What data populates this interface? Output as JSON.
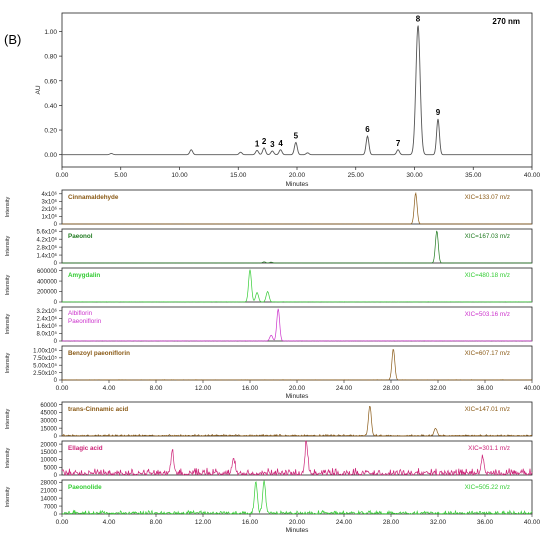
{
  "panel_label": "(B)",
  "chart_data": [
    {
      "type": "line",
      "id": "uv",
      "wavelength_label": "270 nm",
      "xlabel": "Minutes",
      "ylabel": "AU",
      "xlim": [
        0,
        40
      ],
      "ylim": [
        -0.1,
        1.15
      ],
      "x_ticks": [
        "0.00",
        "5.00",
        "10.00",
        "15.00",
        "20.00",
        "25.00",
        "30.00",
        "35.00",
        "40.00"
      ],
      "y_ticks": [
        "0.00",
        "0.20",
        "0.40",
        "0.60",
        "0.80",
        "1.00"
      ],
      "peaks": [
        {
          "x": 4.2,
          "y": 0.01
        },
        {
          "x": 11.0,
          "y": 0.04
        },
        {
          "x": 15.2,
          "y": 0.02
        },
        {
          "x": 16.6,
          "y": 0.035,
          "label": "1"
        },
        {
          "x": 17.2,
          "y": 0.055,
          "label": "2"
        },
        {
          "x": 17.9,
          "y": 0.03,
          "label": "3"
        },
        {
          "x": 18.6,
          "y": 0.04,
          "label": "4"
        },
        {
          "x": 19.9,
          "y": 0.1,
          "label": "5"
        },
        {
          "x": 20.9,
          "y": 0.015
        },
        {
          "x": 26.0,
          "y": 0.15,
          "label": "6"
        },
        {
          "x": 28.6,
          "y": 0.04,
          "label": "7"
        },
        {
          "x": 30.3,
          "y": 1.05,
          "label": "8"
        },
        {
          "x": 32.0,
          "y": 0.29,
          "label": "9"
        }
      ]
    },
    {
      "type": "line",
      "id": "xic1",
      "compound": "Cinnamaldehyde",
      "xic": "XIC=133.07 m/z",
      "ylabel": "Intensity",
      "y_ticks": [
        "0",
        "1x10⁶",
        "2x10⁶",
        "3x10⁶",
        "4x10⁶"
      ],
      "ylim": [
        0,
        4500000
      ],
      "peaks": [
        {
          "x": 30.1,
          "y": 4100000
        }
      ]
    },
    {
      "type": "line",
      "id": "xic2",
      "compound": "Paeonol",
      "xic": "XIC=167.03 m/z",
      "ylabel": "Intensity",
      "y_ticks": [
        "0",
        "1.4x10⁶",
        "2.8x10⁶",
        "4.2x10⁶",
        "5.6x10⁶"
      ],
      "ylim": [
        0,
        6000000
      ],
      "peaks": [
        {
          "x": 17.2,
          "y": 200000
        },
        {
          "x": 17.8,
          "y": 150000
        },
        {
          "x": 31.9,
          "y": 5700000
        }
      ]
    },
    {
      "type": "line",
      "id": "xic3",
      "compound": "Amygdalin",
      "xic": "XIC=480.18 m/z",
      "ylabel": "Intensity",
      "y_ticks": [
        "0",
        "200000",
        "400000",
        "600000"
      ],
      "ylim": [
        0,
        650000
      ],
      "peaks": [
        {
          "x": 16.0,
          "y": 620000
        },
        {
          "x": 16.6,
          "y": 180000
        },
        {
          "x": 17.5,
          "y": 200000
        }
      ]
    },
    {
      "type": "line",
      "id": "xic4",
      "compounds": [
        "Albiflorin",
        "Paeoniflorin"
      ],
      "xic": "XIC=503.16 m/z",
      "ylabel": "Intensity",
      "y_ticks": [
        "0",
        "8.0x10⁵",
        "1.6x10⁶",
        "2.4x10⁶",
        "3.2x10⁶"
      ],
      "ylim": [
        0,
        3600000
      ],
      "peaks": [
        {
          "x": 17.8,
          "y": 600000
        },
        {
          "x": 18.4,
          "y": 3400000
        }
      ]
    },
    {
      "type": "line",
      "id": "xic5",
      "compound": "Benzoyl paeoniflorin",
      "xic": "XIC=607.17 m/z",
      "ylabel": "Intensity",
      "xlabel": "Minutes",
      "y_ticks": [
        "0",
        "2.50x10⁵",
        "5.00x10⁵",
        "7.50x10⁵",
        "1.00x10⁶"
      ],
      "ylim": [
        0,
        1150000
      ],
      "x_ticks": [
        "0.00",
        "4.00",
        "8.00",
        "12.00",
        "16.00",
        "20.00",
        "24.00",
        "28.00",
        "32.00",
        "36.00",
        "40.00"
      ],
      "peaks": [
        {
          "x": 28.2,
          "y": 1050000
        }
      ]
    },
    {
      "type": "line",
      "id": "xic6",
      "compound": "trans-Cinnamic acid",
      "xic": "XIC=147.01 m/z",
      "ylabel": "Intensity",
      "y_ticks": [
        "0",
        "15000",
        "30000",
        "45000",
        "60000"
      ],
      "ylim": [
        0,
        65000
      ],
      "peaks": [
        {
          "x": 26.2,
          "y": 57000
        },
        {
          "x": 31.8,
          "y": 14000
        }
      ]
    },
    {
      "type": "line",
      "id": "xic7",
      "compound": "Ellagic acid",
      "xic": "XIC=301.1 m/z",
      "ylabel": "Intensity",
      "y_ticks": [
        "0",
        "5000",
        "10000",
        "15000",
        "20000"
      ],
      "ylim": [
        0,
        22000
      ],
      "peaks": [
        {
          "x": 20.8,
          "y": 20000
        },
        {
          "x": 9.4,
          "y": 13000
        },
        {
          "x": 14.6,
          "y": 10000
        },
        {
          "x": 35.8,
          "y": 11000
        }
      ]
    },
    {
      "type": "line",
      "id": "xic8",
      "compound": "Paeonolide",
      "xic": "XIC=505.22 m/z",
      "ylabel": "Intensity",
      "xlabel": "Minutes",
      "y_ticks": [
        "0",
        "7000",
        "14000",
        "21000",
        "28000"
      ],
      "ylim": [
        0,
        30000
      ],
      "x_ticks": [
        "0.00",
        "4.00",
        "8.00",
        "12.00",
        "16.00",
        "20.00",
        "24.00",
        "28.00",
        "32.00",
        "36.00",
        "40.00"
      ],
      "peaks": [
        {
          "x": 16.5,
          "y": 28000
        },
        {
          "x": 17.2,
          "y": 28500
        }
      ]
    }
  ],
  "colors": {
    "uv": "#555555",
    "xic1": "#8a5a16",
    "xic2": "#1f7a1f",
    "xic3": "#33cc33",
    "xic4": "#cc33cc",
    "xic5": "#8a5a16",
    "xic6": "#8a5a16",
    "xic7": "#cc2277",
    "xic8": "#33cc33",
    "label_brown": "#8a5a16",
    "label_darkgreen": "#1f7a1f",
    "label_green": "#33cc33",
    "label_magenta": "#cc33cc",
    "label_pink": "#cc2277"
  }
}
